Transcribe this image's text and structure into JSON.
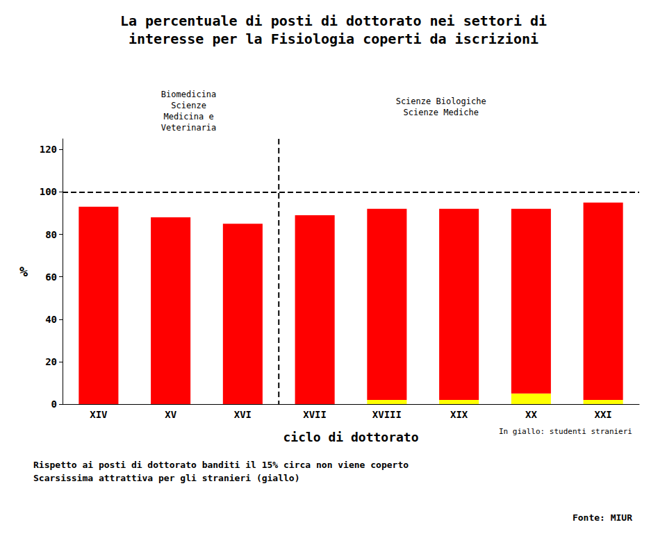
{
  "chart_data": {
    "type": "bar",
    "stacked": true,
    "title": "La percentuale di posti di dottorato nei settori di\ninteresse per la Fisiologia coperti da iscrizioni",
    "categories": [
      "XIV",
      "XV",
      "XVI",
      "XVII",
      "XVIII",
      "XIX",
      "XX",
      "XXI"
    ],
    "series": [
      {
        "color": "#FFFF00",
        "values": [
          0,
          0,
          0,
          0,
          2,
          2,
          5,
          2
        ]
      },
      {
        "color": "#FF0000",
        "values": [
          93,
          88,
          85,
          89,
          90,
          90,
          87,
          93
        ]
      }
    ],
    "xlabel": "ciclo di dottorato",
    "ylabel": "%",
    "ylim": [
      0,
      125
    ],
    "yticks": [
      0,
      20,
      40,
      60,
      80,
      100,
      120
    ],
    "grid": false,
    "hline": 100,
    "vline_after": "XVI",
    "annotations": [
      "Biomedicina\nScienze\nMedicina e\nVeterinaria",
      "Scienze Biologiche\nScienze Mediche"
    ],
    "note": "In giallo: studenti stranieri",
    "footnote": "Rispetto ai posti di dottorato banditi il 15% circa non viene coperto\nScarsissima attrattiva per gli stranieri (giallo)",
    "source": "Fonte: MIUR"
  }
}
